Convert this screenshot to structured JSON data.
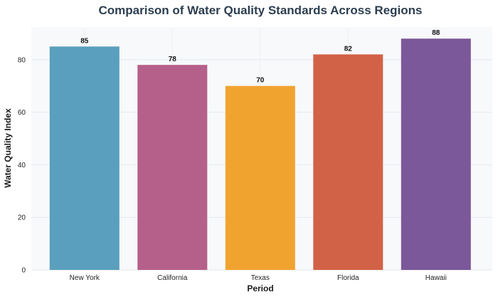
{
  "chart_data": {
    "type": "bar",
    "title": "Comparison of Water Quality Standards Across Regions",
    "xlabel": "Period",
    "ylabel": "Water Quality Index",
    "categories": [
      "New York",
      "California",
      "Texas",
      "Florida",
      "Hawaii"
    ],
    "values": [
      85,
      78,
      70,
      82,
      88
    ],
    "colors": [
      "#5a9fbd",
      "#b5608a",
      "#f1a330",
      "#d26247",
      "#7b5899"
    ],
    "ylim": [
      0,
      92.4
    ],
    "yticks": [
      0,
      20,
      40,
      60,
      80
    ],
    "grid": true,
    "legend": "none"
  }
}
